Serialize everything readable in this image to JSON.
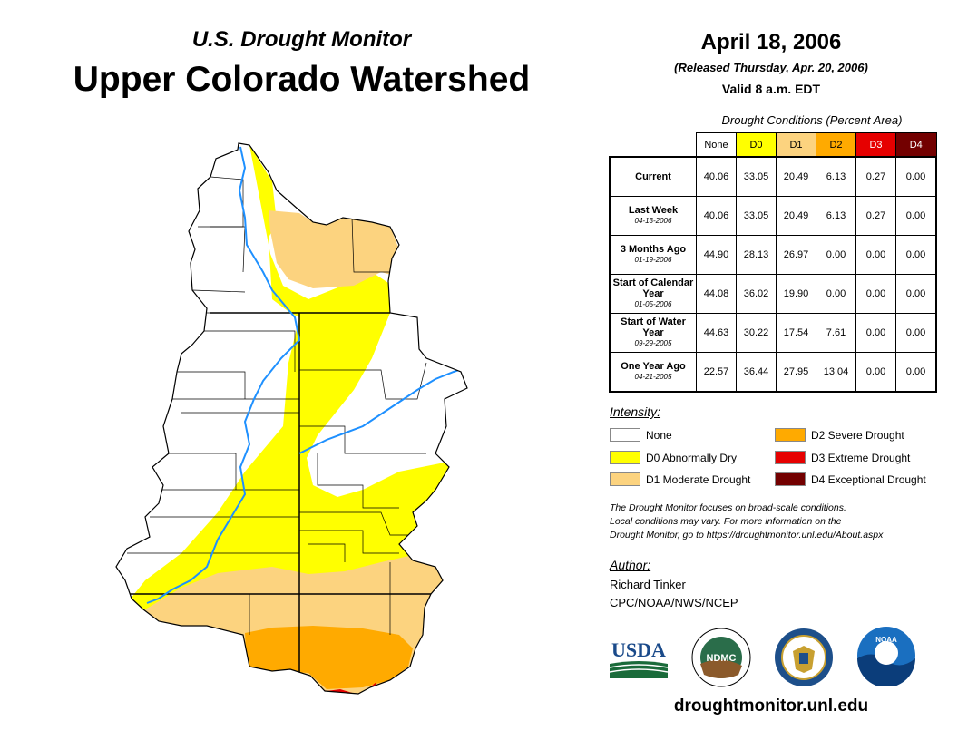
{
  "header": {
    "subtitle": "U.S. Drought Monitor",
    "title": "Upper Colorado Watershed",
    "date": "April 18, 2006",
    "released": "(Released Thursday, Apr. 20, 2006)",
    "valid": "Valid 8 a.m. EDT"
  },
  "table": {
    "caption": "Drought Conditions (Percent Area)",
    "columns": [
      "None",
      "D0",
      "D1",
      "D2",
      "D3",
      "D4"
    ],
    "column_colors": [
      "#ffffff",
      "#ffff00",
      "#fcd37f",
      "#ffaa00",
      "#e60000",
      "#730000"
    ],
    "rows": [
      {
        "label": "Current",
        "date": "",
        "values": [
          "40.06",
          "33.05",
          "20.49",
          "6.13",
          "0.27",
          "0.00"
        ]
      },
      {
        "label": "Last Week",
        "date": "04-13-2006",
        "values": [
          "40.06",
          "33.05",
          "20.49",
          "6.13",
          "0.27",
          "0.00"
        ]
      },
      {
        "label": "3 Months Ago",
        "date": "01-19-2006",
        "values": [
          "44.90",
          "28.13",
          "26.97",
          "0.00",
          "0.00",
          "0.00"
        ]
      },
      {
        "label": "Start of Calendar Year",
        "date": "01-05-2006",
        "values": [
          "44.08",
          "36.02",
          "19.90",
          "0.00",
          "0.00",
          "0.00"
        ]
      },
      {
        "label": "Start of Water Year",
        "date": "09-29-2005",
        "values": [
          "44.63",
          "30.22",
          "17.54",
          "7.61",
          "0.00",
          "0.00"
        ]
      },
      {
        "label": "One Year Ago",
        "date": "04-21-2005",
        "values": [
          "22.57",
          "36.44",
          "27.95",
          "13.04",
          "0.00",
          "0.00"
        ]
      }
    ]
  },
  "legend": {
    "heading": "Intensity:",
    "items": [
      {
        "label": "None",
        "color": "#ffffff"
      },
      {
        "label": "D0 Abnormally Dry",
        "color": "#ffff00"
      },
      {
        "label": "D1 Moderate Drought",
        "color": "#fcd37f"
      },
      {
        "label": "D2 Severe Drought",
        "color": "#ffaa00"
      },
      {
        "label": "D3 Extreme Drought",
        "color": "#e60000"
      },
      {
        "label": "D4 Exceptional Drought",
        "color": "#730000"
      }
    ]
  },
  "note": {
    "line1": "The Drought Monitor focuses on broad-scale conditions.",
    "line2": "Local conditions may vary. For more information on the",
    "line3": "Drought Monitor, go to https://droughtmonitor.unl.edu/About.aspx"
  },
  "author": {
    "heading": "Author:",
    "name": "Richard Tinker",
    "org": "CPC/NOAA/NWS/NCEP"
  },
  "logos": {
    "usda": "USDA",
    "ndmc": "NDMC",
    "noaa": "NOAA"
  },
  "footer": {
    "site": "droughtmonitor.unl.edu"
  }
}
